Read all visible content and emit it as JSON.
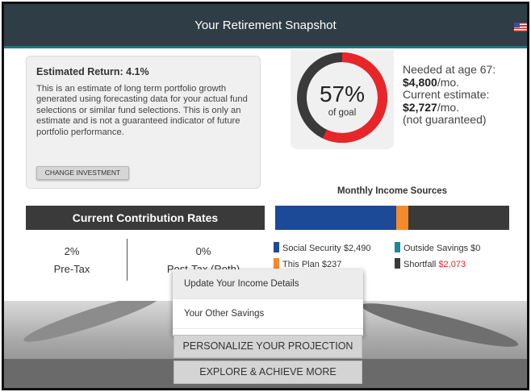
{
  "header": {
    "title": "Your Retirement Snapshot"
  },
  "estimated_return": {
    "title": "Estimated Return: 4.1%",
    "description": "This is an estimate of long term portfolio growth generated using forecasting data for your actual fund selections or similar fund selections. This is only an estimate and is not a guaranteed indicator of future portfolio performance.",
    "change_button": "CHANGE INVESTMENT"
  },
  "goal": {
    "percent_label": "57%",
    "percent_value": 0.57,
    "sub_label": "of goal",
    "colors": {
      "progress": "#e8262a",
      "remaining": "#3a3a3a"
    }
  },
  "needs": {
    "needed_label": "Needed at age 67:",
    "needed_amount": "$4,800",
    "needed_suffix": "/mo.",
    "current_label": "Current estimate:",
    "current_amount": "$2,727",
    "current_suffix": "/mo.",
    "note": "(not guaranteed)"
  },
  "income_sources": {
    "title": "Monthly Income Sources",
    "items": [
      {
        "label": "Social Security",
        "amount": "$2,490",
        "value": 2490,
        "color": "#1c4a96"
      },
      {
        "label": "This Plan",
        "amount": "$237",
        "value": 237,
        "color": "#f5892c"
      },
      {
        "label": "Outside Savings",
        "amount": "$0",
        "value": 0,
        "color": "#1c8a96"
      },
      {
        "label": "Shortfall",
        "amount": "$2,073",
        "value": 2073,
        "color": "#3a3a3a"
      }
    ]
  },
  "contribution": {
    "title": "Current Contribution Rates",
    "pretax_value": "2%",
    "pretax_label": "Pre-Tax",
    "posttax_value": "0%",
    "posttax_label": "Post-Tax (Roth)"
  },
  "menu": {
    "items": [
      "Update Your Income Details",
      "Your Other Savings"
    ]
  },
  "actions": {
    "personalize": "PERSONALIZE YOUR PROJECTION",
    "explore": "EXPLORE & ACHIEVE MORE"
  }
}
